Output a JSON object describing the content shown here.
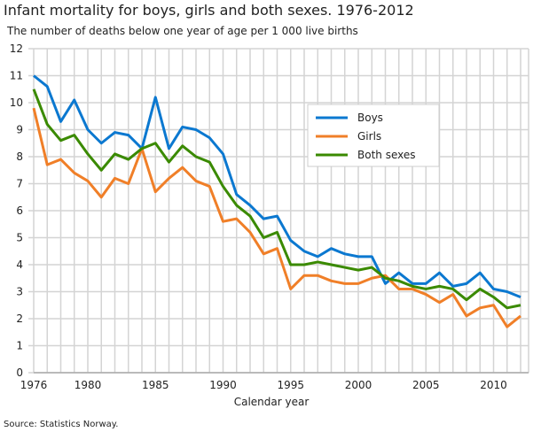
{
  "chart_data": {
    "type": "line",
    "title": "Infant mortality for boys, girls and both sexes. 1976-2012",
    "subtitle": "The number of deaths below one year of age per 1 000 live births",
    "xlabel": "Calendar year",
    "ylabel": "",
    "source": "Source: Statistics Norway.",
    "xlim": [
      1976,
      2012
    ],
    "ylim": [
      0,
      12
    ],
    "xticks": [
      1976,
      1980,
      1985,
      1990,
      1995,
      2000,
      2005,
      2010
    ],
    "yticks": [
      0,
      1,
      2,
      3,
      4,
      5,
      6,
      7,
      8,
      9,
      10,
      11,
      12
    ],
    "grid": true,
    "legend_placement": "upper-center-right",
    "x": [
      1976,
      1977,
      1978,
      1979,
      1980,
      1981,
      1982,
      1983,
      1984,
      1985,
      1986,
      1987,
      1988,
      1989,
      1990,
      1991,
      1992,
      1993,
      1994,
      1995,
      1996,
      1997,
      1998,
      1999,
      2000,
      2001,
      2002,
      2003,
      2004,
      2005,
      2006,
      2007,
      2008,
      2009,
      2010,
      2011,
      2012
    ],
    "series": [
      {
        "name": "Boys",
        "color": "#0b78d0",
        "values": [
          11.0,
          10.6,
          9.3,
          10.1,
          9.0,
          8.5,
          8.9,
          8.8,
          8.3,
          10.2,
          8.3,
          9.1,
          9.0,
          8.7,
          8.1,
          6.6,
          6.2,
          5.7,
          5.8,
          4.9,
          4.5,
          4.3,
          4.6,
          4.4,
          4.3,
          4.3,
          3.3,
          3.7,
          3.3,
          3.3,
          3.7,
          3.2,
          3.3,
          3.7,
          3.1,
          3.0,
          2.8
        ]
      },
      {
        "name": "Girls",
        "color": "#f07f28",
        "values": [
          9.8,
          7.7,
          7.9,
          7.4,
          7.1,
          6.5,
          7.2,
          7.0,
          8.3,
          6.7,
          7.2,
          7.6,
          7.1,
          6.9,
          5.6,
          5.7,
          5.2,
          4.4,
          4.6,
          3.1,
          3.6,
          3.6,
          3.4,
          3.3,
          3.3,
          3.5,
          3.6,
          3.1,
          3.1,
          2.9,
          2.6,
          2.9,
          2.1,
          2.4,
          2.5,
          1.7,
          2.1
        ]
      },
      {
        "name": "Both sexes",
        "color": "#3a8a00",
        "values": [
          10.5,
          9.2,
          8.6,
          8.8,
          8.1,
          7.5,
          8.1,
          7.9,
          8.3,
          8.5,
          7.8,
          8.4,
          8.0,
          7.8,
          6.9,
          6.2,
          5.8,
          5.0,
          5.2,
          4.0,
          4.0,
          4.1,
          4.0,
          3.9,
          3.8,
          3.9,
          3.5,
          3.4,
          3.2,
          3.1,
          3.2,
          3.1,
          2.7,
          3.1,
          2.8,
          2.4,
          2.5
        ]
      }
    ]
  }
}
